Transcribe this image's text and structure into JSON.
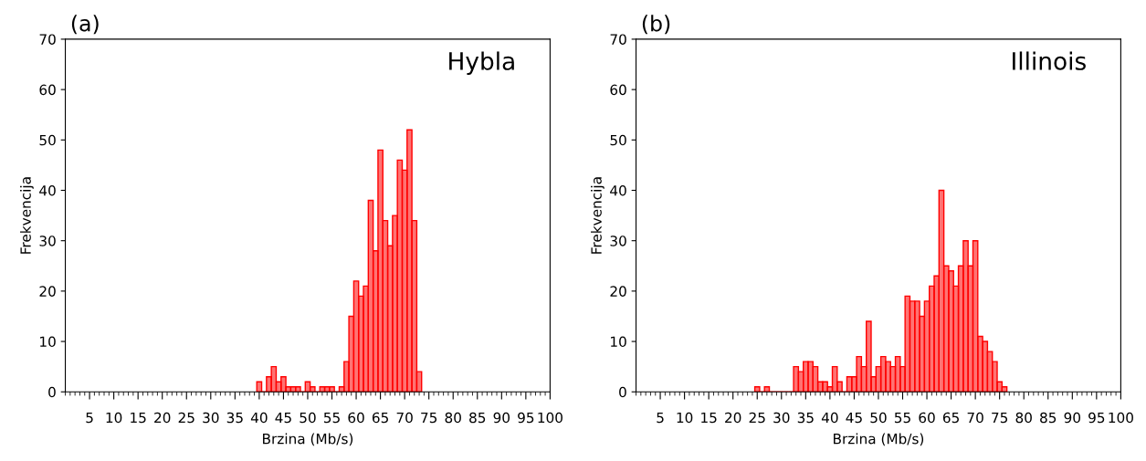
{
  "chart_data": [
    {
      "type": "histogram",
      "title": "(a)",
      "xlabel": "Brzina (Mb/s)",
      "ylabel": "Frekvencija",
      "annotations": [
        "Hybla"
      ],
      "color": "#ff0000",
      "bins": [
        39.5,
        40.5,
        41.5,
        42.5,
        43.5,
        44.5,
        45.5,
        46.5,
        47.5,
        48.5,
        49.5,
        50.5,
        51.5,
        52.5,
        53.5,
        54.5,
        55.5,
        56.5,
        57.5,
        58.5,
        59.5,
        60.5,
        61.5,
        62.5,
        63.5,
        64.5,
        65.5,
        66.5,
        67.5,
        68.5,
        69.5,
        70.5,
        71.5,
        72.5,
        73.5
      ],
      "values": [
        2,
        0,
        3,
        5,
        2,
        3,
        1,
        1,
        1,
        0,
        2,
        1,
        0,
        1,
        1,
        1,
        0,
        1,
        6,
        15,
        22,
        19,
        21,
        38,
        28,
        48,
        34,
        29,
        35,
        46,
        44,
        52,
        34,
        4
      ],
      "xlim": [
        0,
        100
      ],
      "xticks": [
        5,
        10,
        15,
        20,
        25,
        30,
        35,
        40,
        45,
        50,
        55,
        60,
        65,
        70,
        75,
        80,
        85,
        90,
        95,
        100
      ],
      "ylim": [
        0,
        70
      ],
      "yticks": [
        0,
        10,
        20,
        30,
        40,
        50,
        60,
        70
      ],
      "grid": false,
      "legend": false
    },
    {
      "type": "histogram",
      "title": "(b)",
      "xlabel": "Brzina (Mb/s)",
      "ylabel": "Frekvencija",
      "annotations": [
        "Illinois"
      ],
      "color": "#ff0000",
      "bins": [
        24.5,
        25.5,
        26.5,
        27.5,
        28.5,
        29.5,
        30.5,
        31.5,
        32.5,
        33.5,
        34.5,
        35.5,
        36.5,
        37.5,
        38.5,
        39.5,
        40.5,
        41.5,
        42.5,
        43.5,
        44.5,
        45.5,
        46.5,
        47.5,
        48.5,
        49.5,
        50.5,
        51.5,
        52.5,
        53.5,
        54.5,
        55.5,
        56.5,
        57.5,
        58.5,
        59.5,
        60.5,
        61.5,
        62.5,
        63.5,
        64.5,
        65.5,
        66.5,
        67.5,
        68.5,
        69.5,
        70.5,
        71.5,
        72.5,
        73.5,
        74.5,
        75.5,
        76.5
      ],
      "values": [
        1,
        0,
        1,
        0,
        0,
        0,
        0,
        0,
        5,
        4,
        6,
        6,
        5,
        2,
        2,
        1,
        5,
        2,
        0,
        3,
        3,
        7,
        5,
        14,
        3,
        5,
        7,
        6,
        5,
        7,
        5,
        19,
        18,
        18,
        15,
        18,
        21,
        23,
        40,
        25,
        24,
        21,
        25,
        30,
        25,
        30,
        11,
        10,
        8,
        6,
        2,
        1
      ],
      "xlim": [
        0,
        100
      ],
      "xticks": [
        5,
        10,
        15,
        20,
        25,
        30,
        35,
        40,
        45,
        50,
        55,
        60,
        65,
        70,
        75,
        80,
        85,
        90,
        95,
        100
      ],
      "ylim": [
        0,
        70
      ],
      "yticks": [
        0,
        10,
        20,
        30,
        40,
        50,
        60,
        70
      ],
      "grid": false,
      "legend": false
    }
  ]
}
